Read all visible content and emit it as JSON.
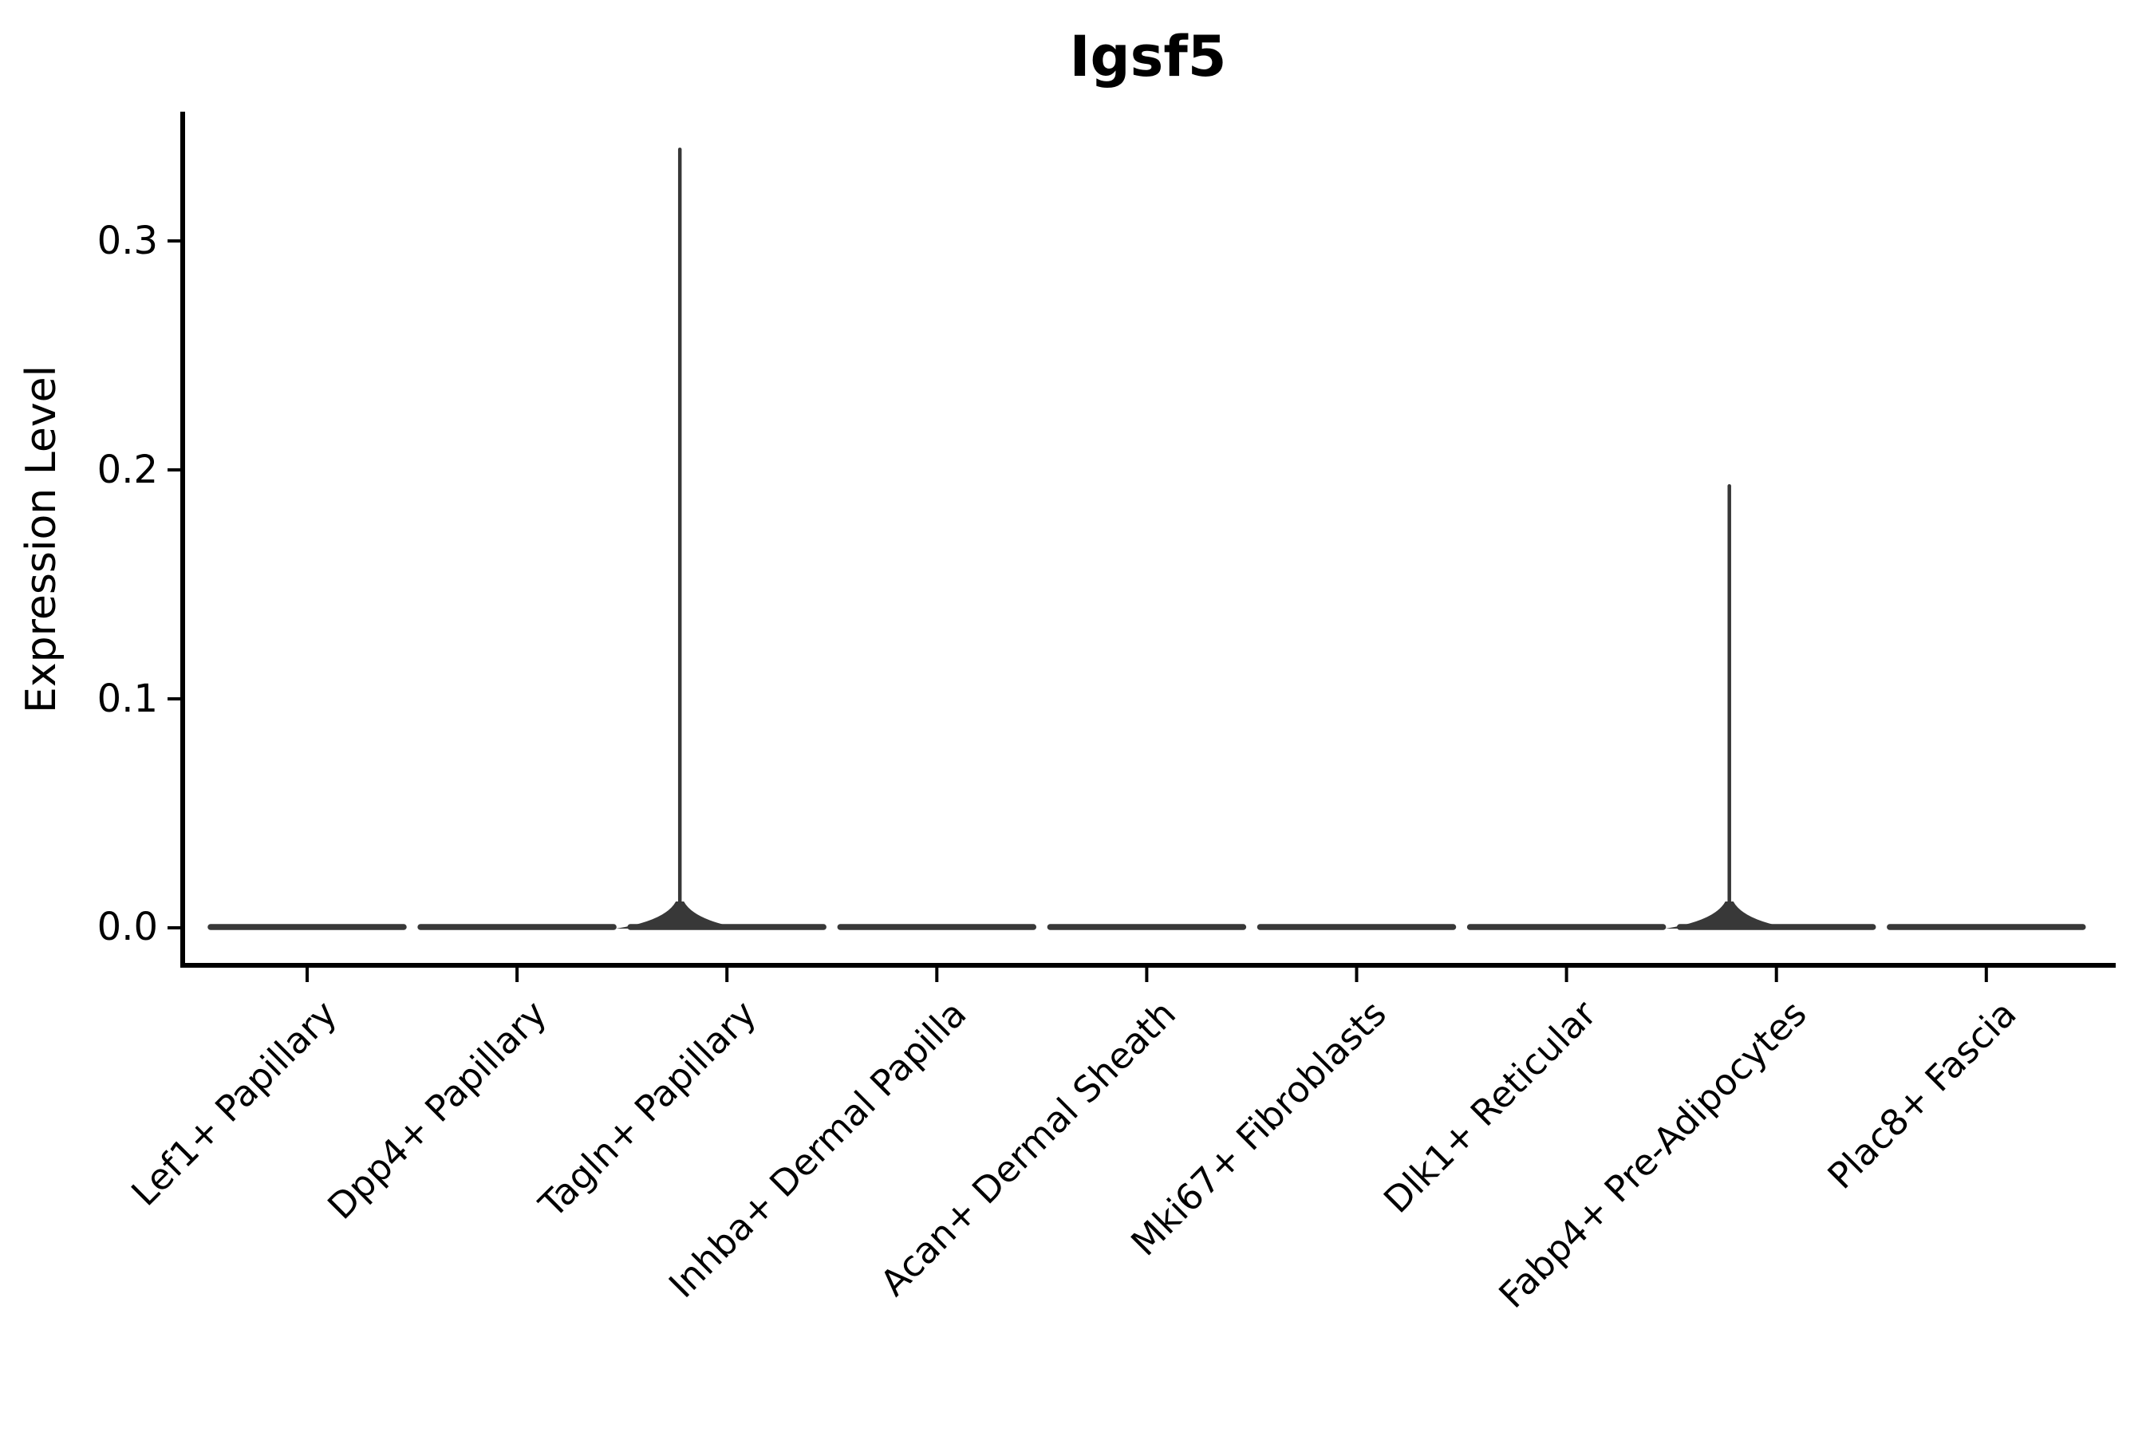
{
  "chart_data": {
    "type": "violin",
    "title": "Igsf5",
    "ylabel": "Expression Level",
    "xlabel": "",
    "categories": [
      "Lef1+ Papillary",
      "Dpp4+ Papillary",
      "Tagln+ Papillary",
      "Inhba+ Dermal Papilla",
      "Acan+ Dermal Sheath",
      "Mki67+ Fibroblasts",
      "Dlk1+ Reticular",
      "Fabp4+ Pre-Adipocytes",
      "Plac8+ Fascia"
    ],
    "yticks": [
      0.0,
      0.1,
      0.2,
      0.3
    ],
    "ytick_labels": [
      "0.0",
      "0.1",
      "0.2",
      "0.3"
    ],
    "ylim": [
      0,
      0.356
    ],
    "grid": false,
    "legend": "none",
    "violin_color": "#383838",
    "axis_color": "#000000",
    "series": [
      {
        "category": "Lef1+ Papillary",
        "baseline_value": 0.0,
        "max_expression": 0.0,
        "spike": false
      },
      {
        "category": "Dpp4+ Papillary",
        "baseline_value": 0.0,
        "max_expression": 0.0,
        "spike": false
      },
      {
        "category": "Tagln+ Papillary",
        "baseline_value": 0.0,
        "max_expression": 0.34,
        "spike": true
      },
      {
        "category": "Inhba+ Dermal Papilla",
        "baseline_value": 0.0,
        "max_expression": 0.0,
        "spike": false
      },
      {
        "category": "Acan+ Dermal Sheath",
        "baseline_value": 0.0,
        "max_expression": 0.0,
        "spike": false
      },
      {
        "category": "Mki67+ Fibroblasts",
        "baseline_value": 0.0,
        "max_expression": 0.0,
        "spike": false
      },
      {
        "category": "Dlk1+ Reticular",
        "baseline_value": 0.0,
        "max_expression": 0.0,
        "spike": false
      },
      {
        "category": "Fabp4+ Pre-Adipocytes",
        "baseline_value": 0.0,
        "max_expression": 0.193,
        "spike": true
      },
      {
        "category": "Plac8+ Fascia",
        "baseline_value": 0.0,
        "max_expression": 0.0,
        "spike": false
      }
    ]
  }
}
